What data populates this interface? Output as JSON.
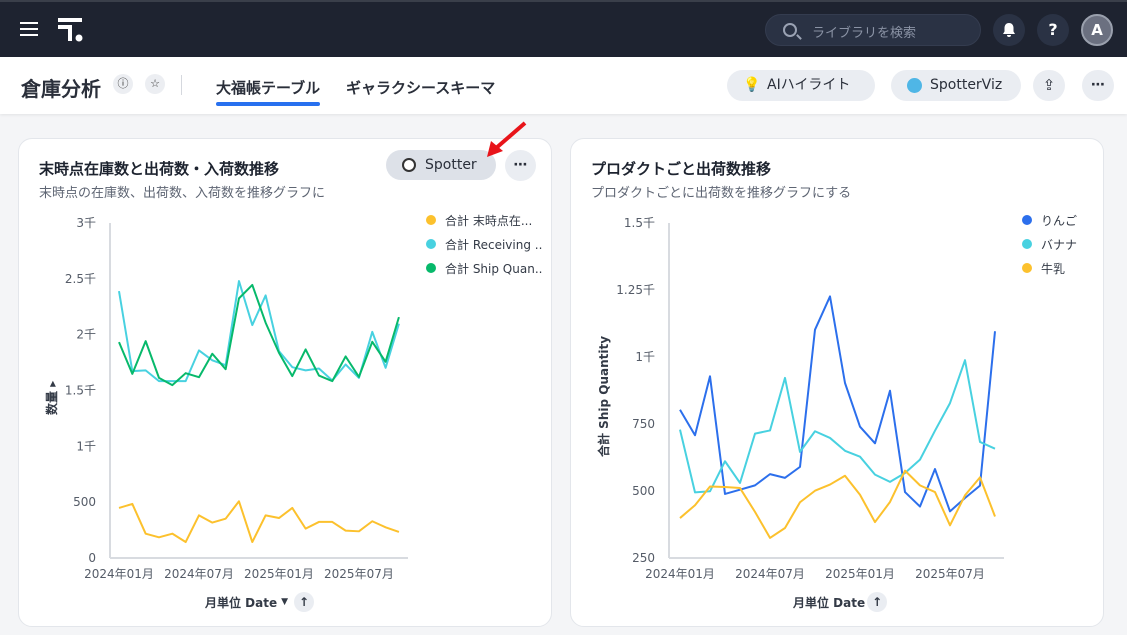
{
  "topbar": {
    "search_placeholder": "ライブラリを検索",
    "help": "?",
    "avatar": "A"
  },
  "header": {
    "title": "倉庫分析",
    "tabs": [
      {
        "label": "大福帳テーブル",
        "active": true
      },
      {
        "label": "ギャラクシースキーマ",
        "active": false
      }
    ],
    "ai_highlight": "AIハイライト",
    "spotterviz": "SpotterViz"
  },
  "colors": {
    "accent": "#2770ef",
    "yellow": "#fcc12d",
    "cyan": "#48d1e0",
    "green": "#07b96b",
    "blue": "#2c6fec"
  },
  "chart_data": [
    {
      "type": "line",
      "title": "末時点在庫数と出荷数・入荷数推移",
      "subtitle": "末時点の在庫数、出荷数、入荷数を推移グラフに",
      "spotter_label": "Spotter",
      "xlabel": "月単位 Date",
      "ylabel": "数量",
      "ylim": [
        0,
        3000
      ],
      "yticks": [
        {
          "v": 0,
          "label": "0"
        },
        {
          "v": 500,
          "label": "500"
        },
        {
          "v": 1000,
          "label": "1千"
        },
        {
          "v": 1500,
          "label": "1.5千"
        },
        {
          "v": 2000,
          "label": "2千"
        },
        {
          "v": 2500,
          "label": "2.5千"
        },
        {
          "v": 3000,
          "label": "3千"
        }
      ],
      "x": [
        "2024-01",
        "2024-02",
        "2024-03",
        "2024-04",
        "2024-05",
        "2024-06",
        "2024-07",
        "2024-08",
        "2024-09",
        "2024-10",
        "2024-11",
        "2024-12",
        "2025-01",
        "2025-02",
        "2025-03",
        "2025-04",
        "2025-05",
        "2025-06",
        "2025-07",
        "2025-08",
        "2025-09",
        "2025-10"
      ],
      "xticks": [
        {
          "i": 0,
          "label": "2024年01月"
        },
        {
          "i": 6,
          "label": "2024年07月"
        },
        {
          "i": 12,
          "label": "2025年01月"
        },
        {
          "i": 18,
          "label": "2025年07月"
        }
      ],
      "legend": "top-right",
      "series": [
        {
          "name": "合計 末時点在...",
          "color": "#fcc12d",
          "values": [
            448,
            484,
            218,
            185,
            218,
            143,
            382,
            317,
            352,
            508,
            143,
            382,
            358,
            448,
            263,
            323,
            323,
            245,
            239,
            329,
            275,
            233
          ]
        },
        {
          "name": "合計 Receiving ..",
          "color": "#48d1e0",
          "values": [
            2390,
            1673,
            1680,
            1584,
            1584,
            1584,
            1859,
            1770,
            1727,
            2480,
            2086,
            2352,
            1853,
            1709,
            1680,
            1697,
            1590,
            1733,
            1613,
            2025,
            1703,
            2098
          ]
        },
        {
          "name": "合計 Ship Quan..",
          "color": "#07b96b",
          "values": [
            1933,
            1649,
            1942,
            1613,
            1548,
            1655,
            1619,
            1829,
            1691,
            2325,
            2445,
            2107,
            1838,
            1629,
            1868,
            1634,
            1584,
            1805,
            1622,
            1936,
            1757,
            2157
          ]
        }
      ]
    },
    {
      "type": "line",
      "title": "プロダクトごと出荷数推移",
      "subtitle": "プロダクトごとに出荷数を推移グラフにする",
      "xlabel": "月単位 Date",
      "ylabel": "合計 Ship Quantity",
      "ylim": [
        250,
        1500
      ],
      "yticks": [
        {
          "v": 250,
          "label": "250"
        },
        {
          "v": 500,
          "label": "500"
        },
        {
          "v": 750,
          "label": "750"
        },
        {
          "v": 1000,
          "label": "1千"
        },
        {
          "v": 1250,
          "label": "1.25千"
        },
        {
          "v": 1500,
          "label": "1.5千"
        }
      ],
      "x": [
        "2024-01",
        "2024-02",
        "2024-03",
        "2024-04",
        "2024-05",
        "2024-06",
        "2024-07",
        "2024-08",
        "2024-09",
        "2024-10",
        "2024-11",
        "2024-12",
        "2025-01",
        "2025-02",
        "2025-03",
        "2025-04",
        "2025-05",
        "2025-06",
        "2025-07",
        "2025-08",
        "2025-09",
        "2025-10"
      ],
      "xticks": [
        {
          "i": 0,
          "label": "2024年01月"
        },
        {
          "i": 6,
          "label": "2024年07月"
        },
        {
          "i": 12,
          "label": "2025年01月"
        },
        {
          "i": 18,
          "label": "2025年07月"
        }
      ],
      "legend": "top-right",
      "series": [
        {
          "name": "りんご",
          "color": "#2c6fec",
          "values": [
            803,
            708,
            928,
            489,
            505,
            521,
            563,
            549,
            590,
            1102,
            1226,
            903,
            740,
            678,
            874,
            496,
            442,
            582,
            424,
            474,
            520,
            1096
          ]
        },
        {
          "name": "バナナ",
          "color": "#48d1e0",
          "values": [
            729,
            495,
            499,
            611,
            530,
            714,
            726,
            922,
            646,
            723,
            698,
            650,
            628,
            561,
            534,
            567,
            617,
            725,
            828,
            988,
            683,
            658
          ]
        },
        {
          "name": "牛乳",
          "color": "#fcc12d",
          "values": [
            399,
            447,
            517,
            515,
            511,
            422,
            325,
            362,
            458,
            501,
            524,
            557,
            486,
            384,
            459,
            576,
            521,
            496,
            372,
            484,
            551,
            405
          ]
        }
      ]
    }
  ]
}
